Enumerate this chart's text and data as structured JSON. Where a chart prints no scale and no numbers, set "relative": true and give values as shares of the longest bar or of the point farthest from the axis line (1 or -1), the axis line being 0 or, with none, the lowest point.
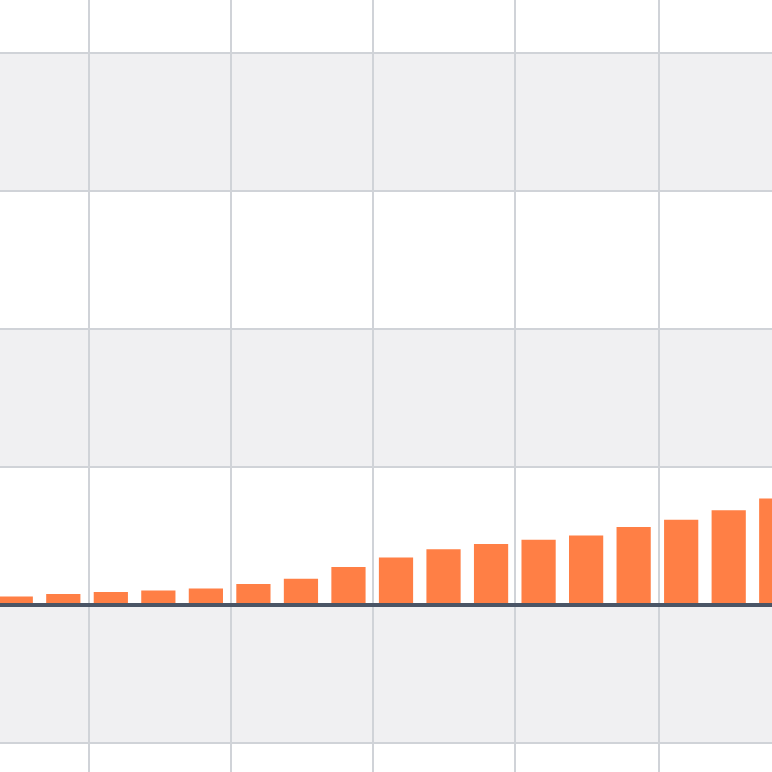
{
  "chart_data": {
    "type": "bar",
    "relative": true,
    "grid": true,
    "color": "#ff7f45",
    "categories": [
      null,
      null,
      null,
      null,
      null,
      null,
      null,
      null,
      null,
      null,
      null,
      null,
      null,
      null,
      null,
      null,
      null
    ],
    "values": [
      0.07,
      0.095,
      0.114,
      0.127,
      0.146,
      0.19,
      0.24,
      0.35,
      0.44,
      0.52,
      0.57,
      0.61,
      0.65,
      0.73,
      0.8,
      0.89,
      1
    ]
  }
}
